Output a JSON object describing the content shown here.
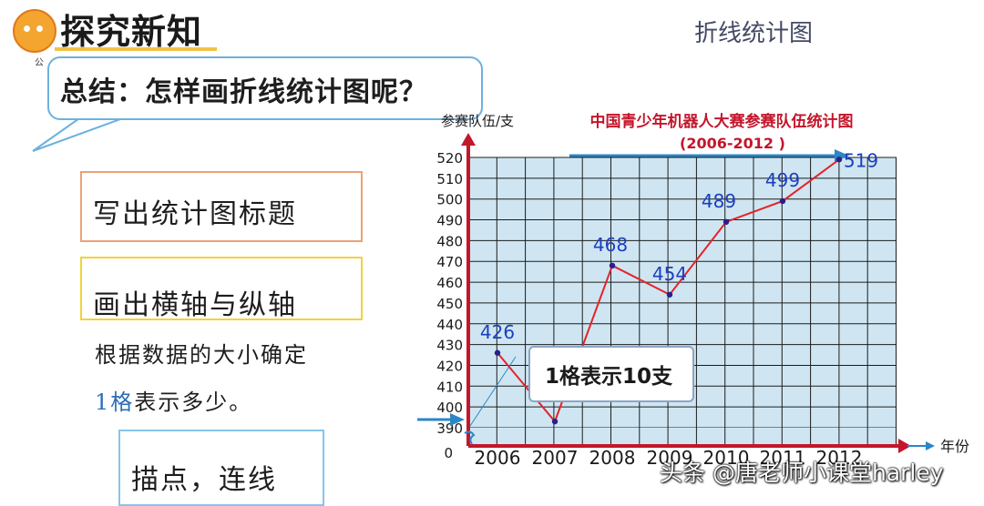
{
  "header": {
    "section_title": "探究新知",
    "logo_small_text": "公",
    "top_right_title": "折线统计图"
  },
  "bubble": {
    "question": "总结：怎样画折线统计图呢？"
  },
  "steps": {
    "step1": "写出统计图标题",
    "step2": "画出横轴与纵轴",
    "step3_line1": "根据数据的大小确定",
    "step3_line2_num": "1格",
    "step3_line2_rest": "表示多少。",
    "step4": "描点，连线"
  },
  "callout": {
    "text": "1格表示10支"
  },
  "watermark": "头条 @唐老师小课堂harley",
  "colors": {
    "grid_bg": "#cfe6f2",
    "grid_line": "#1c1c1c",
    "axis": "#c3162b",
    "line": "#e5222a",
    "point": "#2a1f8c",
    "value_label": "#1c3fbf",
    "title": "#c3162b",
    "blue_arrow": "#2b86c7"
  },
  "chart_data": {
    "type": "line",
    "title": "中国青少年机器人大赛参赛队伍统计图",
    "subtitle": "(2006-2012 )",
    "ylabel": "参赛队伍/支",
    "xlabel": "年份",
    "categories": [
      "2006",
      "2007",
      "2008",
      "2009",
      "2010",
      "2011",
      "2012"
    ],
    "series": [
      {
        "values": [
          426,
          393,
          468,
          454,
          489,
          499,
          519
        ]
      }
    ],
    "data_labels": [
      "426",
      "",
      "468",
      "454",
      "489",
      "499",
      "519"
    ],
    "y_ticks": [
      "390",
      "400",
      "410",
      "420",
      "430",
      "440",
      "450",
      "460",
      "470",
      "480",
      "490",
      "500",
      "510",
      "520"
    ],
    "y_zero_label": "0",
    "ylim": [
      390,
      520
    ],
    "tick_step": 10,
    "grid": true,
    "axis_break": true
  }
}
